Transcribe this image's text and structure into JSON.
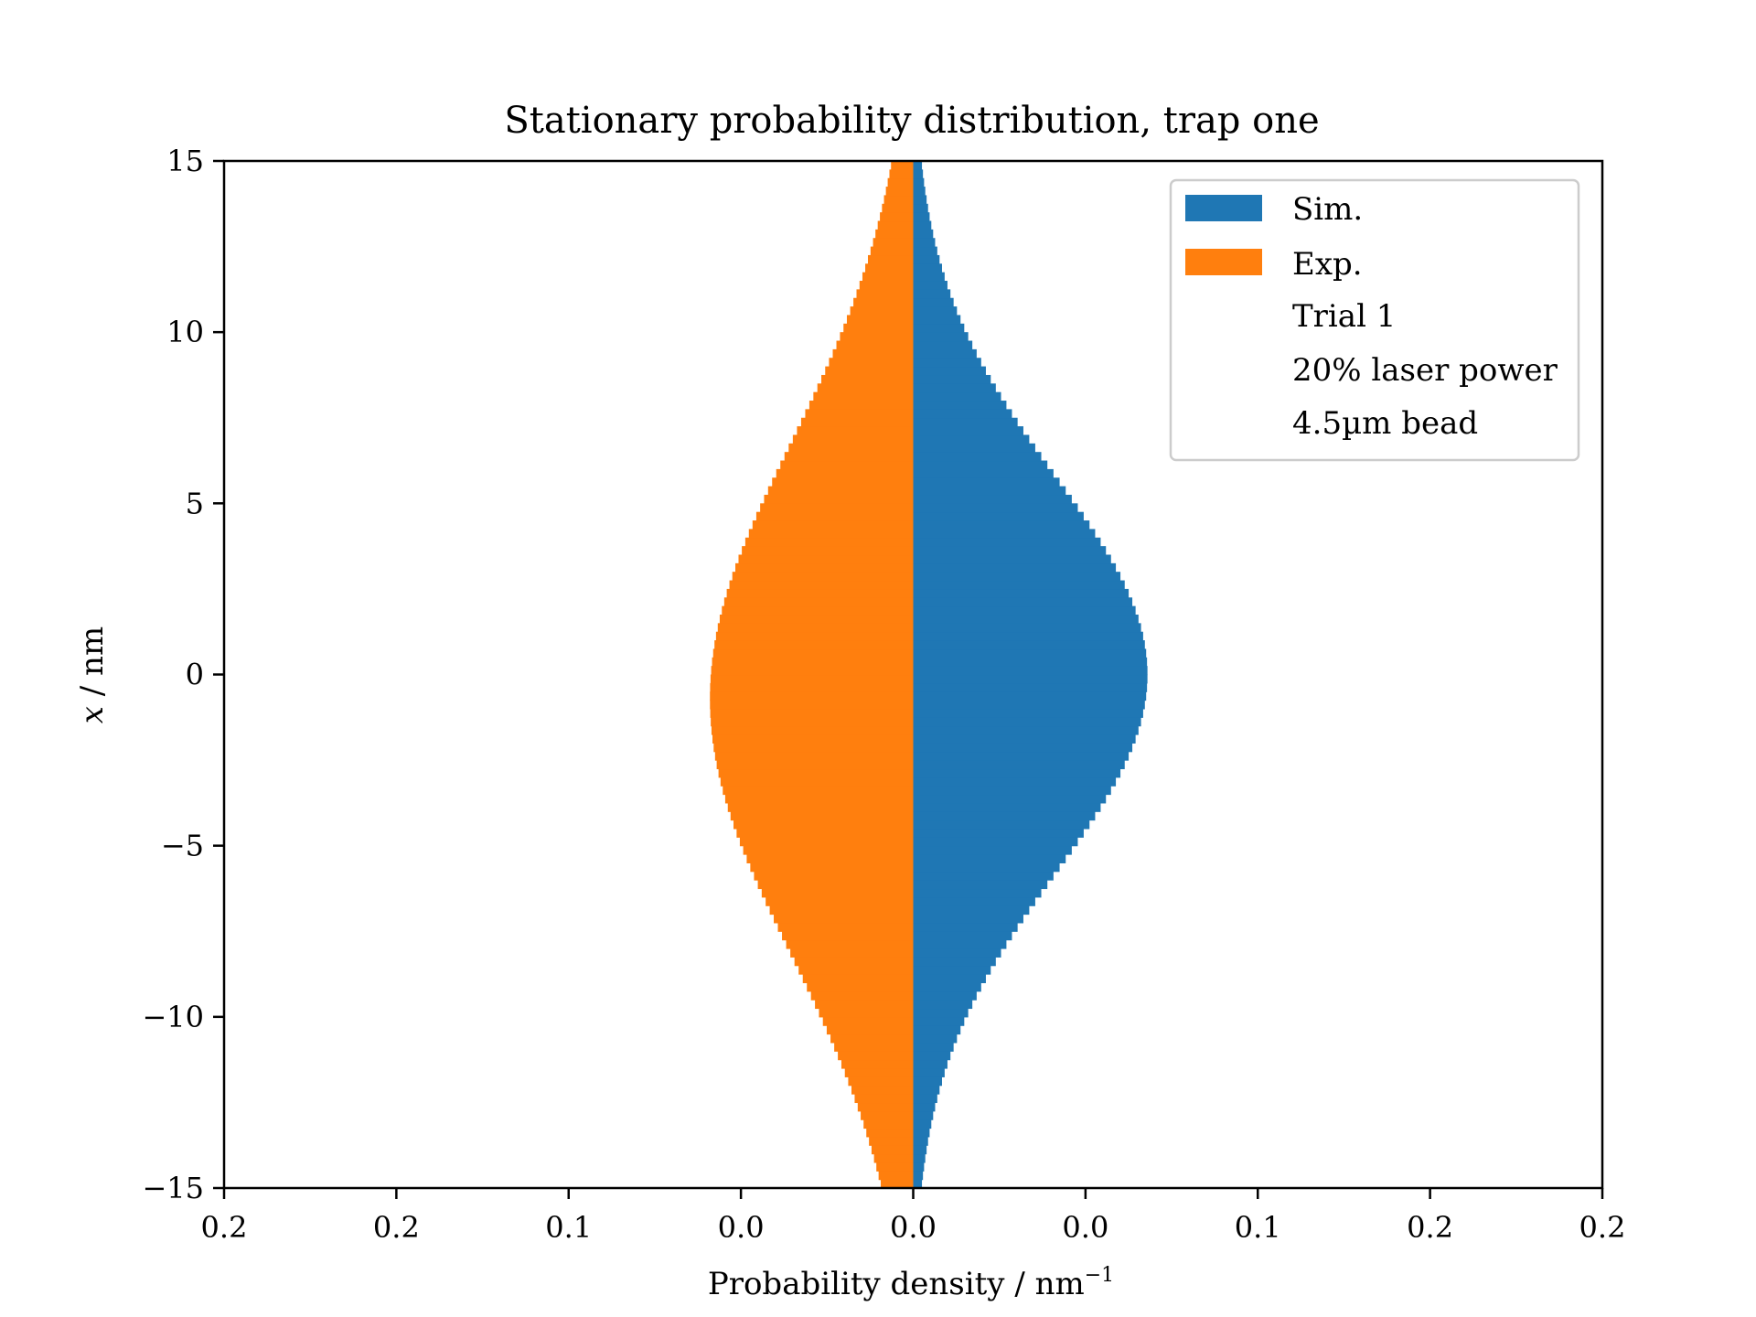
{
  "chart_data": {
    "type": "bar",
    "orientation": "horizontal-mirrored",
    "title": "Stationary probability distribution, trap one",
    "xlabel": "Probability density / nm",
    "xlabel_sup": "−1",
    "ylabel_var": "x",
    "ylabel_unit": " / nm",
    "xlim": [
      -0.2,
      0.2
    ],
    "ylim": [
      -15,
      15
    ],
    "x_ticks": [
      -0.2,
      -0.15,
      -0.1,
      -0.05,
      0,
      0.05,
      0.1,
      0.15,
      0.2
    ],
    "x_tick_labels": [
      "0.2",
      "0.2",
      "0.1",
      "0.0",
      "0.0",
      "0.0",
      "0.1",
      "0.2",
      "0.2"
    ],
    "y_ticks": [
      15,
      10,
      5,
      0,
      -5,
      -10,
      -15
    ],
    "y_tick_labels": [
      "15",
      "10",
      "5",
      "0",
      "−5",
      "−10",
      "−15"
    ],
    "grid": false,
    "legend_position": "top-right",
    "legend_entries": [
      "Sim.",
      "Exp.",
      "Trial 1",
      "20% laser power",
      "4.5µm bead"
    ],
    "colors": {
      "sim": "#1f77b4",
      "exp": "#ff7f0e",
      "axis": "#000000"
    },
    "bin_range": [
      -15,
      15
    ],
    "bin_count": 120,
    "series": [
      {
        "name": "Sim.",
        "side": "right",
        "sigma_nm": 5.8,
        "peak": 0.068
      },
      {
        "name": "Exp.",
        "side": "left",
        "sigma_nm": 7.4,
        "peak": 0.059,
        "center_nm": -0.7
      }
    ]
  }
}
